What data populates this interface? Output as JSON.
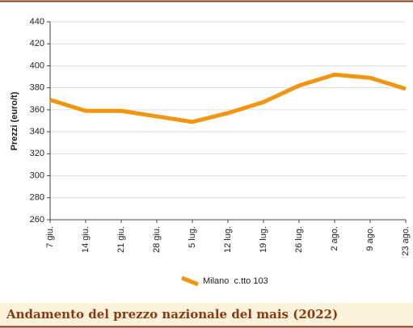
{
  "chart_data": {
    "type": "line",
    "title": "Andamento del prezzo nazionale del mais (2022)",
    "y_label": "Prezzi (euro/t)",
    "categories": [
      "7 giu.",
      "14 giu.",
      "21 giu.",
      "28 giu.",
      "5 lug.",
      "12 lug.",
      "19 lug.",
      "26 lug.",
      "2 ago.",
      "9 ago.",
      "23 ago."
    ],
    "series": [
      {
        "name": "Milano  c.tto 103",
        "color": "#f0960f",
        "values": [
          369,
          359,
          359,
          354,
          349,
          357,
          367,
          382,
          392,
          389,
          379
        ]
      }
    ],
    "ylim": [
      260,
      440
    ],
    "yticks": [
      260,
      280,
      300,
      320,
      340,
      360,
      380,
      400,
      420,
      440
    ],
    "grid": true
  }
}
